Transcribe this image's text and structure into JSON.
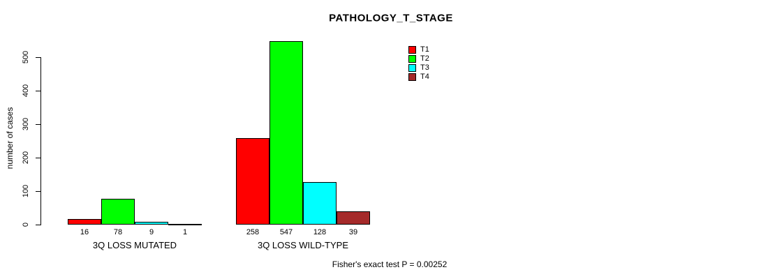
{
  "title": "PATHOLOGY_T_STAGE",
  "annotation": "Fisher's exact test P = 0.00252",
  "chart_data": {
    "type": "bar",
    "title": "PATHOLOGY_T_STAGE",
    "xlabel": "",
    "ylabel": "number of cases",
    "categories": [
      "3Q LOSS MUTATED",
      "3Q LOSS WILD-TYPE"
    ],
    "series": [
      {
        "name": "T1",
        "color": "#ff0000",
        "values": [
          16,
          258
        ]
      },
      {
        "name": "T2",
        "color": "#00ff00",
        "values": [
          78,
          547
        ]
      },
      {
        "name": "T3",
        "color": "#00ffff",
        "values": [
          9,
          128
        ]
      },
      {
        "name": "T4",
        "color": "#a52a2a",
        "values": [
          1,
          39
        ]
      }
    ],
    "bar_value_labels": {
      "3Q LOSS MUTATED": [
        16,
        78,
        9,
        1
      ],
      "3Q LOSS WILD-TYPE": [
        258,
        547,
        128,
        39
      ]
    },
    "yticks": [
      0,
      100,
      200,
      300,
      400,
      500
    ],
    "ylim": [
      0,
      560
    ],
    "grid": false,
    "legend_position": "top-right",
    "legend_entries": [
      "T1",
      "T2",
      "T3",
      "T4"
    ],
    "annotation": "Fisher's exact test P = 0.00252"
  }
}
